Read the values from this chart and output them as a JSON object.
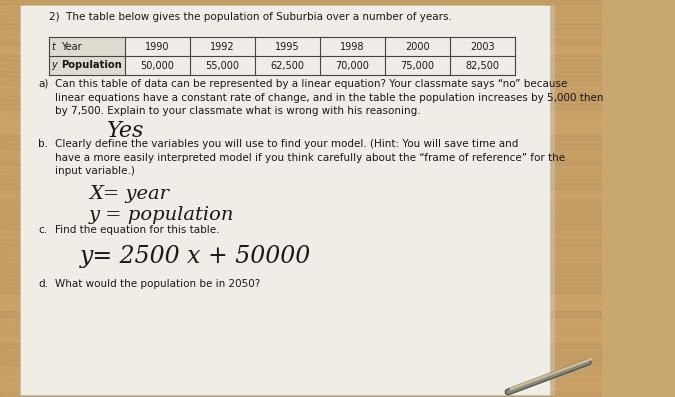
{
  "title": "2)  The table below gives the population of Suburbia over a number of years.",
  "row1_label_t": "t",
  "row1_label_year": "Year",
  "row2_label_y": "y",
  "row2_label_pop": "Population",
  "row1_values": [
    "1990",
    "1992",
    "1995",
    "1998",
    "2000",
    "2003"
  ],
  "row2_values": [
    "50,000",
    "55,000",
    "62,500",
    "70,000",
    "75,000",
    "82,500"
  ],
  "part_a_label": "a)",
  "part_a_text": "Can this table of data can be represented by a linear equation? Your classmate says “no” because\nlinear equations have a constant rate of change, and in the table the population increases by 5,000 then\nby 7,500. Explain to your classmate what is wrong with his reasoning.",
  "answer_a": "Yes",
  "part_b_label": "b.",
  "part_b_text": "Clearly define the variables you will use to find your model. (Hint: You will save time and\nhave a more easily interpreted model if you think carefully about the “frame of reference” for the\ninput variable.)",
  "answer_b1": "X= year",
  "answer_b2": "y = population",
  "part_c_label": "c.",
  "part_c_text": "Find the equation for this table.",
  "answer_c": "y= 2500 x + 50000",
  "part_d_label": "d.",
  "part_d_text": "What would the population be in 2050?",
  "wood_color": "#c8a870",
  "wood_color2": "#b8955a",
  "paper_color": "#f0ede6",
  "paper_shadow": "#d8d0c0",
  "text_color": "#1a1818",
  "table_line_color": "#444444",
  "table_header_bg": "#e0dbd0",
  "pencil_color": "#888888"
}
